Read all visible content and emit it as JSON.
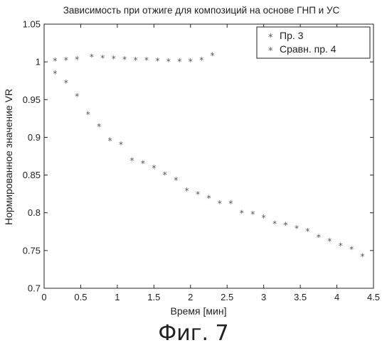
{
  "figure_caption": "Фиг. 7",
  "chart_data": {
    "type": "scatter",
    "title": "Зависимость при отжиге для композиций на основе ГНП и УС",
    "xlabel": "Время [мин]",
    "ylabel": "Нормированное значение VR",
    "xlim": [
      0,
      4.5
    ],
    "ylim": [
      0.7,
      1.05
    ],
    "x_ticks": [
      "0",
      "0.5",
      "1",
      "1.5",
      "2",
      "2.5",
      "3",
      "3.5",
      "4",
      "4.5"
    ],
    "y_ticks": [
      "0.7",
      "0.75",
      "0.8",
      "0.85",
      "0.9",
      "0.95",
      "1",
      "1.05"
    ],
    "grid": false,
    "legend_position": "top-right",
    "series": [
      {
        "name": "Пр. 3",
        "marker": "*",
        "color": "#555555",
        "x": [
          0.15,
          0.3,
          0.45,
          0.65,
          0.8,
          0.95,
          1.1,
          1.25,
          1.4,
          1.55,
          1.7,
          1.85,
          2.0,
          2.15,
          2.3
        ],
        "y": [
          1.002,
          1.003,
          1.004,
          1.007,
          1.006,
          1.005,
          1.004,
          1.003,
          1.003,
          1.002,
          1.001,
          1.001,
          1.001,
          1.003,
          1.009
        ]
      },
      {
        "name": "Сравн. пр. 4",
        "marker": "*",
        "color": "#555555",
        "x": [
          0.15,
          0.3,
          0.45,
          0.6,
          0.75,
          0.9,
          1.05,
          1.2,
          1.35,
          1.5,
          1.65,
          1.8,
          1.95,
          2.1,
          2.25,
          2.4,
          2.55,
          2.7,
          2.85,
          3.0,
          3.15,
          3.3,
          3.45,
          3.6,
          3.75,
          3.9,
          4.05,
          4.2,
          4.35
        ],
        "y": [
          0.985,
          0.973,
          0.955,
          0.931,
          0.915,
          0.896,
          0.891,
          0.87,
          0.866,
          0.86,
          0.851,
          0.844,
          0.83,
          0.825,
          0.82,
          0.813,
          0.813,
          0.8,
          0.799,
          0.794,
          0.786,
          0.784,
          0.78,
          0.776,
          0.768,
          0.763,
          0.757,
          0.752,
          0.743
        ]
      }
    ]
  }
}
